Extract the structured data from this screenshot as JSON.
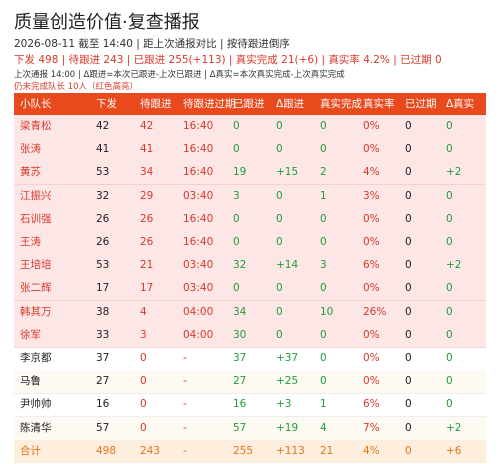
{
  "header": {
    "title": "质量创造价值·复查播报",
    "meta": "2026-08-11 截至 14:40 | 距上次通报对比 | 按待跟进倒序",
    "summary": "下发 498 | 待跟进 243 | 已跟进 255(+113) | 真实完成 21(+6) | 真实率 4.2% | 已过期 0",
    "note": "上次通报 14:00 | Δ跟进=本次已跟进-上次已跟进 | Δ真实=本次真实完成-上次真实完成",
    "alert": "仍未完成队长 10人（红色高亮）"
  },
  "table": {
    "columns": [
      "小队长",
      "下发",
      "待跟进",
      "待跟进过期",
      "已跟进",
      "Δ跟进",
      "真实完成",
      "真实率",
      "已过期",
      "Δ真实"
    ],
    "rows": [
      [
        "梁青松",
        "42",
        "42",
        "16:40",
        "0",
        "0",
        "0",
        "0%",
        "0",
        "0"
      ],
      [
        "张涛",
        "41",
        "41",
        "16:40",
        "0",
        "0",
        "0",
        "0%",
        "0",
        "0"
      ],
      [
        "黄苏",
        "53",
        "34",
        "16:40",
        "19",
        "+15",
        "2",
        "4%",
        "0",
        "+2"
      ],
      [
        "江振兴",
        "32",
        "29",
        "03:40",
        "3",
        "0",
        "1",
        "3%",
        "0",
        "0"
      ],
      [
        "石训强",
        "26",
        "26",
        "16:40",
        "0",
        "0",
        "0",
        "0%",
        "0",
        "0"
      ],
      [
        "王涛",
        "26",
        "26",
        "16:40",
        "0",
        "0",
        "0",
        "0%",
        "0",
        "0"
      ],
      [
        "王培培",
        "53",
        "21",
        "03:40",
        "32",
        "+14",
        "3",
        "6%",
        "0",
        "+2"
      ],
      [
        "张二辉",
        "17",
        "17",
        "03:40",
        "0",
        "0",
        "0",
        "0%",
        "0",
        "0"
      ],
      [
        "韩其万",
        "38",
        "4",
        "04:00",
        "34",
        "0",
        "10",
        "26%",
        "0",
        "0"
      ],
      [
        "徐军",
        "33",
        "3",
        "04:00",
        "30",
        "0",
        "0",
        "0%",
        "0",
        "0"
      ],
      [
        "李京都",
        "37",
        "0",
        "-",
        "37",
        "+37",
        "0",
        "0%",
        "0",
        "0"
      ],
      [
        "马鲁",
        "27",
        "0",
        "-",
        "27",
        "+25",
        "0",
        "0%",
        "0",
        "0"
      ],
      [
        "尹帅帅",
        "16",
        "0",
        "-",
        "16",
        "+3",
        "1",
        "6%",
        "0",
        "0"
      ],
      [
        "陈清华",
        "57",
        "0",
        "-",
        "57",
        "+19",
        "4",
        "7%",
        "0",
        "+2"
      ]
    ],
    "total": [
      "合计",
      "498",
      "243",
      "-",
      "255",
      "+113",
      "21",
      "4%",
      "0",
      "+6"
    ]
  }
}
